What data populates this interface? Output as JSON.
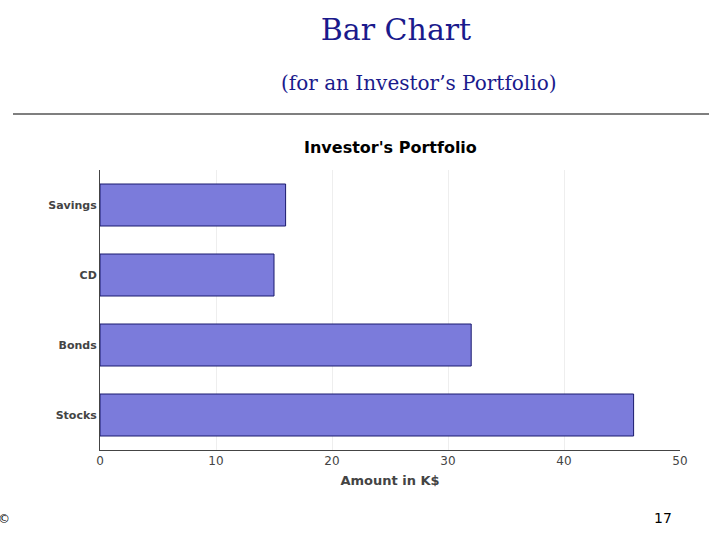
{
  "chart_data": {
    "type": "bar",
    "orientation": "horizontal",
    "title": "Bar Chart",
    "subtitle": "(for an Investor’s Portfolio)",
    "annotations": [
      "Investor's Portfolio",
      "©",
      "17"
    ],
    "categories": [
      "Stocks",
      "Bonds",
      "CD",
      "Savings"
    ],
    "values": [
      46,
      32,
      15,
      16
    ],
    "color": "#7b7bdb",
    "xlabel": "Amount in K$",
    "xlim": [
      0,
      50
    ],
    "xticks": [
      0,
      10,
      20,
      30,
      40,
      50
    ],
    "grid": true
  }
}
